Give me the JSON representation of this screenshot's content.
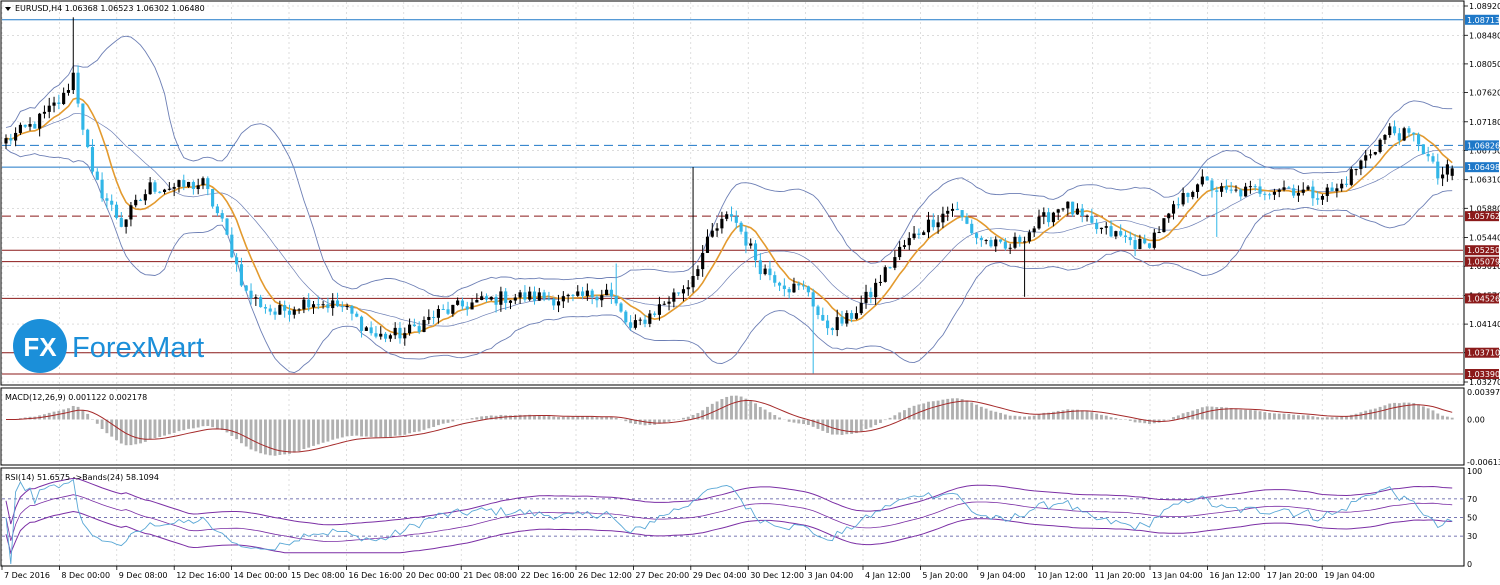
{
  "chart_data": {
    "type": "candlestick",
    "symbol": "EURUSD,H4",
    "header": "EURUSD,H4  1.06368 1.06523 1.06302 1.06480",
    "ohlc_last": {
      "open": "1.06368",
      "high": "1.06523",
      "low": "1.06302",
      "close": "1.06480"
    },
    "y_range": [
      1.0327,
      1.0892
    ],
    "y_ticks": [
      "1.08920",
      "1.08480",
      "1.08050",
      "1.07620",
      "1.07180",
      "1.06750",
      "1.06310",
      "1.05880",
      "1.05440",
      "1.05010",
      "1.04570",
      "1.04140",
      "1.03710",
      "1.03270"
    ],
    "x_ticks": [
      "7 Dec 2016",
      "8 Dec 00:00",
      "9 Dec 08:00",
      "12 Dec 16:00",
      "14 Dec 00:00",
      "15 Dec 08:00",
      "16 Dec 16:00",
      "20 Dec 00:00",
      "21 Dec 08:00",
      "22 Dec 16:00",
      "26 Dec 12:00",
      "27 Dec 20:00",
      "29 Dec 04:00",
      "30 Dec 12:00",
      "3 Jan 04:00",
      "4 Jan 12:00",
      "5 Jan 20:00",
      "9 Jan 04:00",
      "10 Jan 12:00",
      "11 Jan 20:00",
      "13 Jan 04:00",
      "16 Jan 12:00",
      "17 Jan 20:00",
      "19 Jan 04:00"
    ],
    "levels": [
      {
        "value": 1.08713,
        "label": "1.08713",
        "style": "solid",
        "color": "#1e78c8"
      },
      {
        "value": 1.06826,
        "label": "1.06826",
        "style": "dashed",
        "color": "#1e78c8"
      },
      {
        "value": 1.06498,
        "label": "1.06498",
        "style": "solid",
        "color": "#1e78c8"
      },
      {
        "value": 1.05762,
        "label": "1.05762",
        "style": "dashed",
        "color": "#8b1a1a"
      },
      {
        "value": 1.0525,
        "label": "1.05250",
        "style": "solid",
        "color": "#8b1a1a"
      },
      {
        "value": 1.05079,
        "label": "1.05079",
        "style": "solid",
        "color": "#8b1a1a"
      },
      {
        "value": 1.04526,
        "label": "1.04526",
        "style": "solid",
        "color": "#8b1a1a"
      },
      {
        "value": 1.0371,
        "label": "1.03710",
        "style": "solid",
        "color": "#8b1a1a"
      },
      {
        "value": 1.0339,
        "label": "1.03390",
        "style": "solid",
        "color": "#8b1a1a"
      }
    ],
    "anchors": [
      {
        "t": 0,
        "p": 1.069
      },
      {
        "t": 6,
        "p": 1.0715
      },
      {
        "t": 12,
        "p": 1.0755
      },
      {
        "t": 14,
        "p": 1.079
      },
      {
        "t": 18,
        "p": 1.0635
      },
      {
        "t": 24,
        "p": 1.0565
      },
      {
        "t": 30,
        "p": 1.062
      },
      {
        "t": 36,
        "p": 1.062
      },
      {
        "t": 41,
        "p": 1.0625
      },
      {
        "t": 45,
        "p": 1.0565
      },
      {
        "t": 50,
        "p": 1.046
      },
      {
        "t": 56,
        "p": 1.043
      },
      {
        "t": 63,
        "p": 1.045
      },
      {
        "t": 70,
        "p": 1.044
      },
      {
        "t": 77,
        "p": 1.0395
      },
      {
        "t": 83,
        "p": 1.04
      },
      {
        "t": 90,
        "p": 1.043
      },
      {
        "t": 97,
        "p": 1.0445
      },
      {
        "t": 104,
        "p": 1.0455
      },
      {
        "t": 111,
        "p": 1.0455
      },
      {
        "t": 118,
        "p": 1.045
      },
      {
        "t": 125,
        "p": 1.0465
      },
      {
        "t": 130,
        "p": 1.0405
      },
      {
        "t": 136,
        "p": 1.044
      },
      {
        "t": 142,
        "p": 1.0475
      },
      {
        "t": 147,
        "p": 1.055
      },
      {
        "t": 151,
        "p": 1.058
      },
      {
        "t": 157,
        "p": 1.05
      },
      {
        "t": 163,
        "p": 1.047
      },
      {
        "t": 167,
        "p": 1.0465
      },
      {
        "t": 170,
        "p": 1.041
      },
      {
        "t": 175,
        "p": 1.042
      },
      {
        "t": 180,
        "p": 1.046
      },
      {
        "t": 186,
        "p": 1.0525
      },
      {
        "t": 191,
        "p": 1.056
      },
      {
        "t": 197,
        "p": 1.059
      },
      {
        "t": 202,
        "p": 1.0545
      },
      {
        "t": 208,
        "p": 1.0525
      },
      {
        "t": 214,
        "p": 1.056
      },
      {
        "t": 220,
        "p": 1.0595
      },
      {
        "t": 226,
        "p": 1.056
      },
      {
        "t": 232,
        "p": 1.0545
      },
      {
        "t": 237,
        "p": 1.053
      },
      {
        "t": 242,
        "p": 1.0575
      },
      {
        "t": 248,
        "p": 1.063
      },
      {
        "t": 254,
        "p": 1.061
      },
      {
        "t": 260,
        "p": 1.0615
      },
      {
        "t": 266,
        "p": 1.062
      },
      {
        "t": 272,
        "p": 1.061
      },
      {
        "t": 277,
        "p": 1.0615
      },
      {
        "t": 283,
        "p": 1.0665
      },
      {
        "t": 288,
        "p": 1.0705
      },
      {
        "t": 294,
        "p": 1.069
      },
      {
        "t": 298,
        "p": 1.0635
      },
      {
        "t": 301,
        "p": 1.0648
      }
    ],
    "overlays": [
      "Bollinger Bands",
      "Moving Average"
    ],
    "macd": {
      "label": "MACD(12,26,9) 0.001122 0.002178",
      "y_ticks": [
        "0.003974",
        "0.00",
        "-0.006138"
      ],
      "range": [
        -0.006138,
        0.003974
      ]
    },
    "rsi": {
      "label": "RSI(14) 51.6575  ->Bands(24) 58.1094",
      "y_ticks": [
        "100",
        "70",
        "50",
        "30",
        "0"
      ],
      "range": [
        0,
        100
      ]
    }
  },
  "watermark": {
    "text": "ForexMart",
    "logo_letters": "FX"
  },
  "colors": {
    "bull": "#000000",
    "bear": "#31b6e7",
    "ma": "#e39a2e",
    "band": "#6d7fb5",
    "macd_hist": "#b0b0b0",
    "macd_signal": "#a52a2a",
    "rsi": "#5aa8d6",
    "rsi_band": "#7b2fa5",
    "grid": "#c8c8c8"
  }
}
